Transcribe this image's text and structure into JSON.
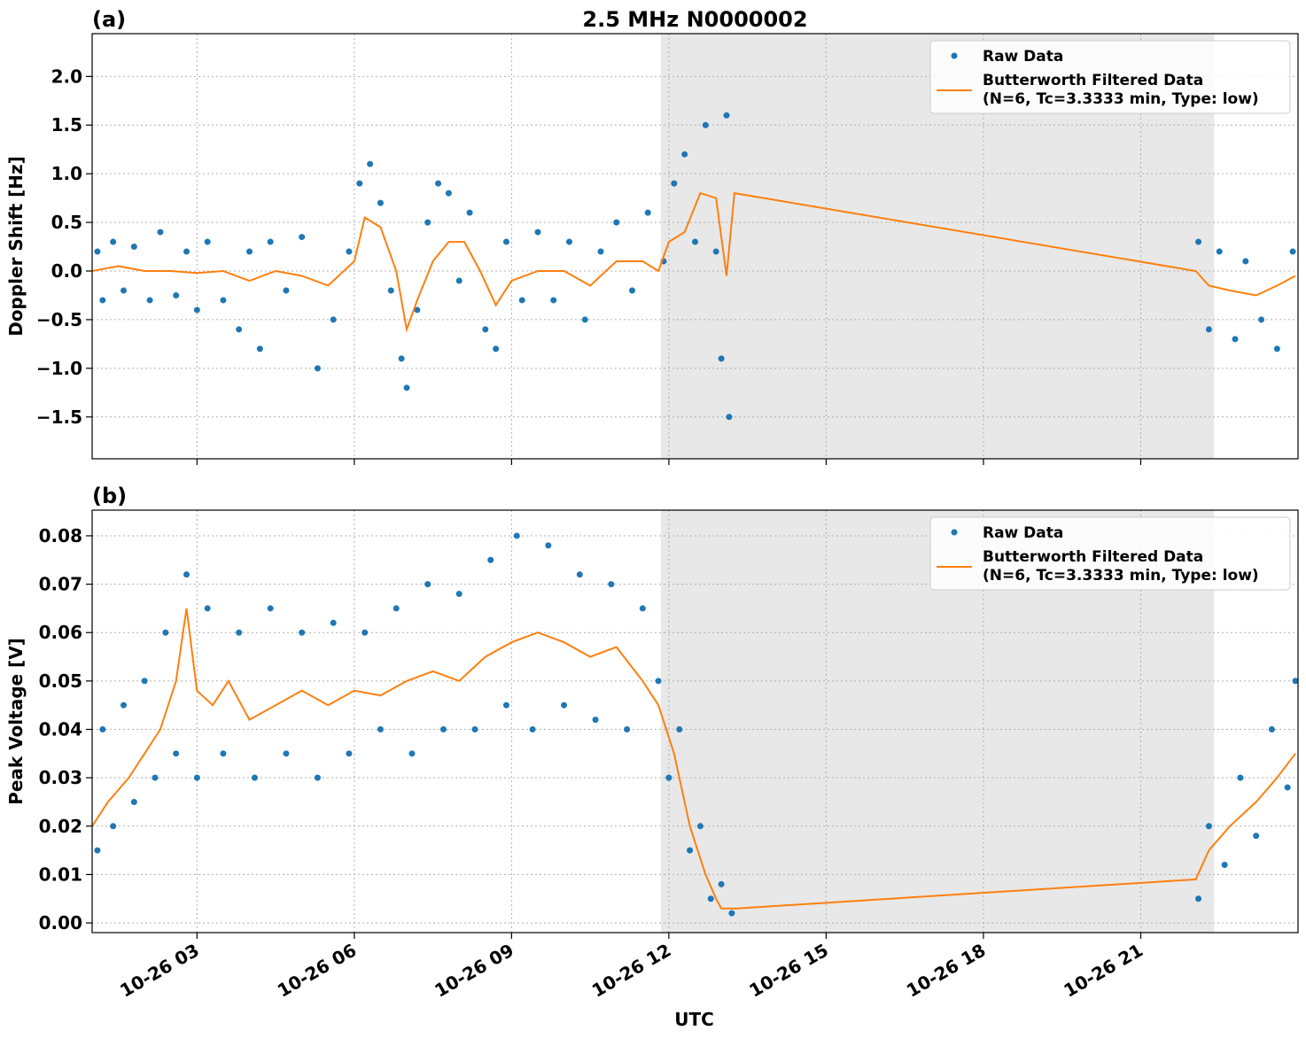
{
  "chart_data": [
    {
      "type": "line",
      "panel_label": "(a)",
      "title": "2.5 MHz N0000002",
      "ylabel": "Doppler Shift [Hz]",
      "xlim": [
        1.0,
        24.0
      ],
      "ylim": [
        -1.93,
        2.44
      ],
      "grid": true,
      "legend": "upper right",
      "shaded_span": [
        11.85,
        22.4
      ],
      "xticks": [
        3,
        6,
        9,
        12,
        15,
        18,
        21
      ],
      "yticks": [
        {
          "value": -1.5,
          "label": "−1.5"
        },
        {
          "value": -1.0,
          "label": "−1.0"
        },
        {
          "value": -0.5,
          "label": "−0.5"
        },
        {
          "value": 0.0,
          "label": "0.0"
        },
        {
          "value": 0.5,
          "label": "0.5"
        },
        {
          "value": 1.0,
          "label": "1.0"
        },
        {
          "value": 1.5,
          "label": "1.5"
        },
        {
          "value": 2.0,
          "label": "2.0"
        }
      ],
      "series": [
        {
          "name": "Raw Data",
          "style": "markers",
          "color": "#1f77b4",
          "x": [
            1.1,
            1.2,
            1.4,
            1.6,
            1.8,
            2.1,
            2.3,
            2.6,
            2.8,
            3.0,
            3.2,
            3.5,
            3.8,
            4.0,
            4.2,
            4.4,
            4.7,
            5.0,
            5.3,
            5.6,
            5.9,
            6.1,
            6.3,
            6.5,
            6.7,
            6.9,
            7.0,
            7.2,
            7.4,
            7.6,
            7.8,
            8.0,
            8.2,
            8.5,
            8.7,
            8.9,
            9.2,
            9.5,
            9.8,
            10.1,
            10.4,
            10.7,
            11.0,
            11.3,
            11.6,
            11.9,
            12.1,
            12.3,
            12.5,
            12.7,
            12.9,
            13.0,
            13.1,
            13.15,
            22.1,
            22.3,
            22.5,
            22.8,
            23.0,
            23.3,
            23.6,
            23.9
          ],
          "values": [
            0.2,
            -0.3,
            0.3,
            -0.2,
            0.25,
            -0.3,
            0.4,
            -0.25,
            0.2,
            -0.4,
            0.3,
            -0.3,
            -0.6,
            0.2,
            -0.8,
            0.3,
            -0.2,
            0.35,
            -1.0,
            -0.5,
            0.2,
            0.9,
            1.1,
            0.7,
            -0.2,
            -0.9,
            -1.2,
            -0.4,
            0.5,
            0.9,
            0.8,
            -0.1,
            0.6,
            -0.6,
            -0.8,
            0.3,
            -0.3,
            0.4,
            -0.3,
            0.3,
            -0.5,
            0.2,
            0.5,
            -0.2,
            0.6,
            0.1,
            0.9,
            1.2,
            0.3,
            1.5,
            0.2,
            -0.9,
            1.6,
            -1.5,
            0.3,
            -0.6,
            0.2,
            -0.7,
            0.1,
            -0.5,
            -0.8,
            0.2
          ]
        },
        {
          "name": "Butterworth Filtered Data",
          "name_line2": "(N=6, Tc=3.3333 min, Type: low)",
          "style": "line",
          "color": "#ff7f0e",
          "x": [
            1.0,
            1.5,
            2.0,
            2.5,
            3.0,
            3.5,
            4.0,
            4.5,
            5.0,
            5.5,
            6.0,
            6.2,
            6.5,
            6.8,
            7.0,
            7.2,
            7.5,
            7.8,
            8.1,
            8.4,
            8.7,
            9.0,
            9.5,
            10.0,
            10.5,
            11.0,
            11.5,
            11.8,
            12.0,
            12.3,
            12.6,
            12.9,
            13.1,
            13.25,
            22.05,
            22.3,
            22.7,
            23.2,
            23.6,
            23.95
          ],
          "values": [
            0.0,
            0.05,
            0.0,
            0.0,
            -0.02,
            0.0,
            -0.1,
            0.0,
            -0.05,
            -0.15,
            0.1,
            0.55,
            0.45,
            0.0,
            -0.6,
            -0.3,
            0.1,
            0.3,
            0.3,
            0.0,
            -0.35,
            -0.1,
            0.0,
            0.0,
            -0.15,
            0.1,
            0.1,
            0.0,
            0.3,
            0.4,
            0.8,
            0.75,
            -0.05,
            0.8,
            0.0,
            -0.15,
            -0.2,
            -0.25,
            -0.15,
            -0.05
          ]
        }
      ]
    },
    {
      "type": "line",
      "panel_label": "(b)",
      "ylabel": "Peak Voltage [V]",
      "xlabel": "UTC",
      "xlim": [
        1.0,
        24.0
      ],
      "ylim": [
        -0.002,
        0.0853
      ],
      "grid": true,
      "legend": "upper right",
      "shaded_span": [
        11.85,
        22.4
      ],
      "xticks": [
        {
          "value": 3,
          "label": "10-26 03"
        },
        {
          "value": 6,
          "label": "10-26 06"
        },
        {
          "value": 9,
          "label": "10-26 09"
        },
        {
          "value": 12,
          "label": "10-26 12"
        },
        {
          "value": 15,
          "label": "10-26 15"
        },
        {
          "value": 18,
          "label": "10-26 18"
        },
        {
          "value": 21,
          "label": "10-26 21"
        }
      ],
      "yticks": [
        {
          "value": 0.0,
          "label": "0.00"
        },
        {
          "value": 0.01,
          "label": "0.01"
        },
        {
          "value": 0.02,
          "label": "0.02"
        },
        {
          "value": 0.03,
          "label": "0.03"
        },
        {
          "value": 0.04,
          "label": "0.04"
        },
        {
          "value": 0.05,
          "label": "0.05"
        },
        {
          "value": 0.06,
          "label": "0.06"
        },
        {
          "value": 0.07,
          "label": "0.07"
        },
        {
          "value": 0.08,
          "label": "0.08"
        }
      ],
      "series": [
        {
          "name": "Raw Data",
          "style": "markers",
          "color": "#1f77b4",
          "x": [
            1.1,
            1.2,
            1.4,
            1.6,
            1.8,
            2.0,
            2.2,
            2.4,
            2.6,
            2.8,
            3.0,
            3.2,
            3.5,
            3.8,
            4.1,
            4.4,
            4.7,
            5.0,
            5.3,
            5.6,
            5.9,
            6.2,
            6.5,
            6.8,
            7.1,
            7.4,
            7.7,
            8.0,
            8.3,
            8.6,
            8.9,
            9.1,
            9.4,
            9.7,
            10.0,
            10.3,
            10.6,
            10.9,
            11.2,
            11.5,
            11.8,
            12.0,
            12.2,
            12.4,
            12.6,
            12.8,
            13.0,
            13.2,
            22.1,
            22.3,
            22.6,
            22.9,
            23.2,
            23.5,
            23.8,
            23.95
          ],
          "values": [
            0.015,
            0.04,
            0.02,
            0.045,
            0.025,
            0.05,
            0.03,
            0.06,
            0.035,
            0.072,
            0.03,
            0.065,
            0.035,
            0.06,
            0.03,
            0.065,
            0.035,
            0.06,
            0.03,
            0.062,
            0.035,
            0.06,
            0.04,
            0.065,
            0.035,
            0.07,
            0.04,
            0.068,
            0.04,
            0.075,
            0.045,
            0.08,
            0.04,
            0.078,
            0.045,
            0.072,
            0.042,
            0.07,
            0.04,
            0.065,
            0.05,
            0.03,
            0.04,
            0.015,
            0.02,
            0.005,
            0.008,
            0.002,
            0.005,
            0.02,
            0.012,
            0.03,
            0.018,
            0.04,
            0.028,
            0.05
          ]
        },
        {
          "name": "Butterworth Filtered Data",
          "name_line2": "(N=6, Tc=3.3333 min, Type: low)",
          "style": "line",
          "color": "#ff7f0e",
          "x": [
            1.0,
            1.3,
            1.7,
            2.0,
            2.3,
            2.6,
            2.8,
            3.0,
            3.3,
            3.6,
            4.0,
            4.5,
            5.0,
            5.5,
            6.0,
            6.5,
            7.0,
            7.5,
            8.0,
            8.5,
            9.0,
            9.5,
            10.0,
            10.5,
            11.0,
            11.5,
            11.8,
            12.1,
            12.4,
            12.7,
            12.9,
            13.0,
            13.3,
            22.05,
            22.3,
            22.7,
            23.2,
            23.6,
            23.95
          ],
          "values": [
            0.02,
            0.025,
            0.03,
            0.035,
            0.04,
            0.05,
            0.065,
            0.048,
            0.045,
            0.05,
            0.042,
            0.045,
            0.048,
            0.045,
            0.048,
            0.047,
            0.05,
            0.052,
            0.05,
            0.055,
            0.058,
            0.06,
            0.058,
            0.055,
            0.057,
            0.05,
            0.045,
            0.035,
            0.02,
            0.01,
            0.005,
            0.003,
            0.003,
            0.009,
            0.015,
            0.02,
            0.025,
            0.03,
            0.035
          ]
        }
      ]
    }
  ]
}
